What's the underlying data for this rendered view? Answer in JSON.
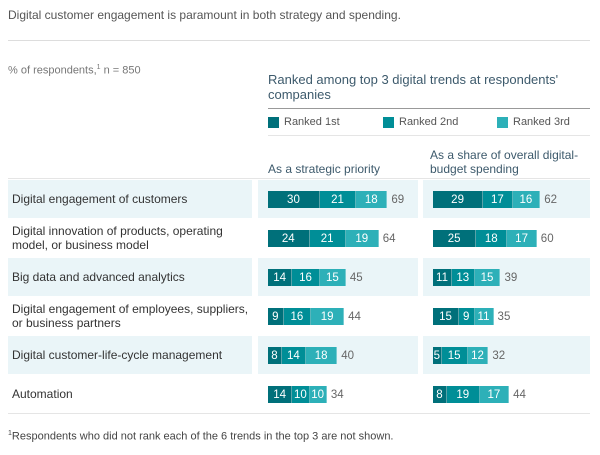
{
  "chart_data": {
    "type": "bar",
    "stacked": true,
    "orientation": "horizontal",
    "title": "Digital customer engagement is paramount in both strategy and spending.",
    "unit_label": "% of respondents,",
    "unit_sup": "1",
    "unit_n": " n = 850",
    "header": "Ranked among top 3 digital trends at respondents' companies",
    "legend": [
      {
        "name": "Ranked 1st",
        "color": "#00707a"
      },
      {
        "name": "Ranked 2nd",
        "color": "#008e97"
      },
      {
        "name": "Ranked 3rd",
        "color": "#2db0b8"
      }
    ],
    "columns": [
      "As a strategic priority",
      "As a share of overall digital-budget spending"
    ],
    "categories": [
      "Digital engagement of customers",
      "Digital innovation of products, operating model, or business model",
      "Big data and advanced analytics",
      "Digital engagement of employees, suppliers, or business partners",
      "Digital customer-life-cycle management",
      "Automation"
    ],
    "strategic": [
      [
        30,
        21,
        18,
        69
      ],
      [
        24,
        21,
        19,
        64
      ],
      [
        14,
        16,
        15,
        45
      ],
      [
        9,
        16,
        19,
        44
      ],
      [
        8,
        14,
        18,
        40
      ],
      [
        14,
        10,
        10,
        34
      ]
    ],
    "budget": [
      [
        29,
        17,
        16,
        62
      ],
      [
        25,
        18,
        17,
        60
      ],
      [
        11,
        13,
        15,
        39
      ],
      [
        15,
        9,
        11,
        35
      ],
      [
        5,
        15,
        12,
        32
      ],
      [
        8,
        19,
        17,
        44
      ]
    ],
    "footnote_sup": "1",
    "footnote": "Respondents who did not rank each of the 6 trends in the top 3 are not shown."
  }
}
